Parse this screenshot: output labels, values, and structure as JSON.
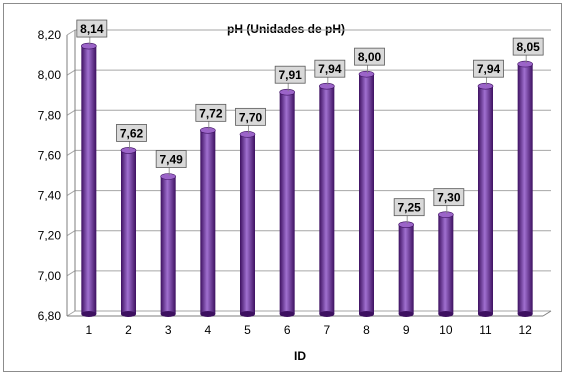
{
  "chart_data": {
    "type": "bar",
    "title": "pH (Unidades de pH)",
    "xlabel": "ID",
    "ylabel": "",
    "categories": [
      "1",
      "2",
      "3",
      "4",
      "5",
      "6",
      "7",
      "8",
      "9",
      "10",
      "11",
      "12"
    ],
    "values": [
      8.14,
      7.62,
      7.49,
      7.72,
      7.7,
      7.91,
      7.94,
      8.0,
      7.25,
      7.3,
      7.94,
      8.05
    ],
    "data_labels": [
      "8,14",
      "7,62",
      "7,49",
      "7,72",
      "7,70",
      "7,91",
      "7,94",
      "8,00",
      "7,25",
      "7,30",
      "7,94",
      "8,05"
    ],
    "y_ticks": [
      6.8,
      7.0,
      7.2,
      7.4,
      7.6,
      7.8,
      8.0,
      8.2
    ],
    "y_tick_labels": [
      "6,80",
      "7,00",
      "7,20",
      "7,40",
      "7,60",
      "7,80",
      "8,00",
      "8,20"
    ],
    "ylim": [
      6.8,
      8.2
    ],
    "grid": true,
    "legend": "none",
    "colors": {
      "bar": "#7030a0",
      "bar_dark": "#3d1060",
      "bar_light": "#a070d0",
      "bar_top": "#9b64c8",
      "grid": "#a6a6a6",
      "label_bg": "#d9d9d9"
    }
  }
}
